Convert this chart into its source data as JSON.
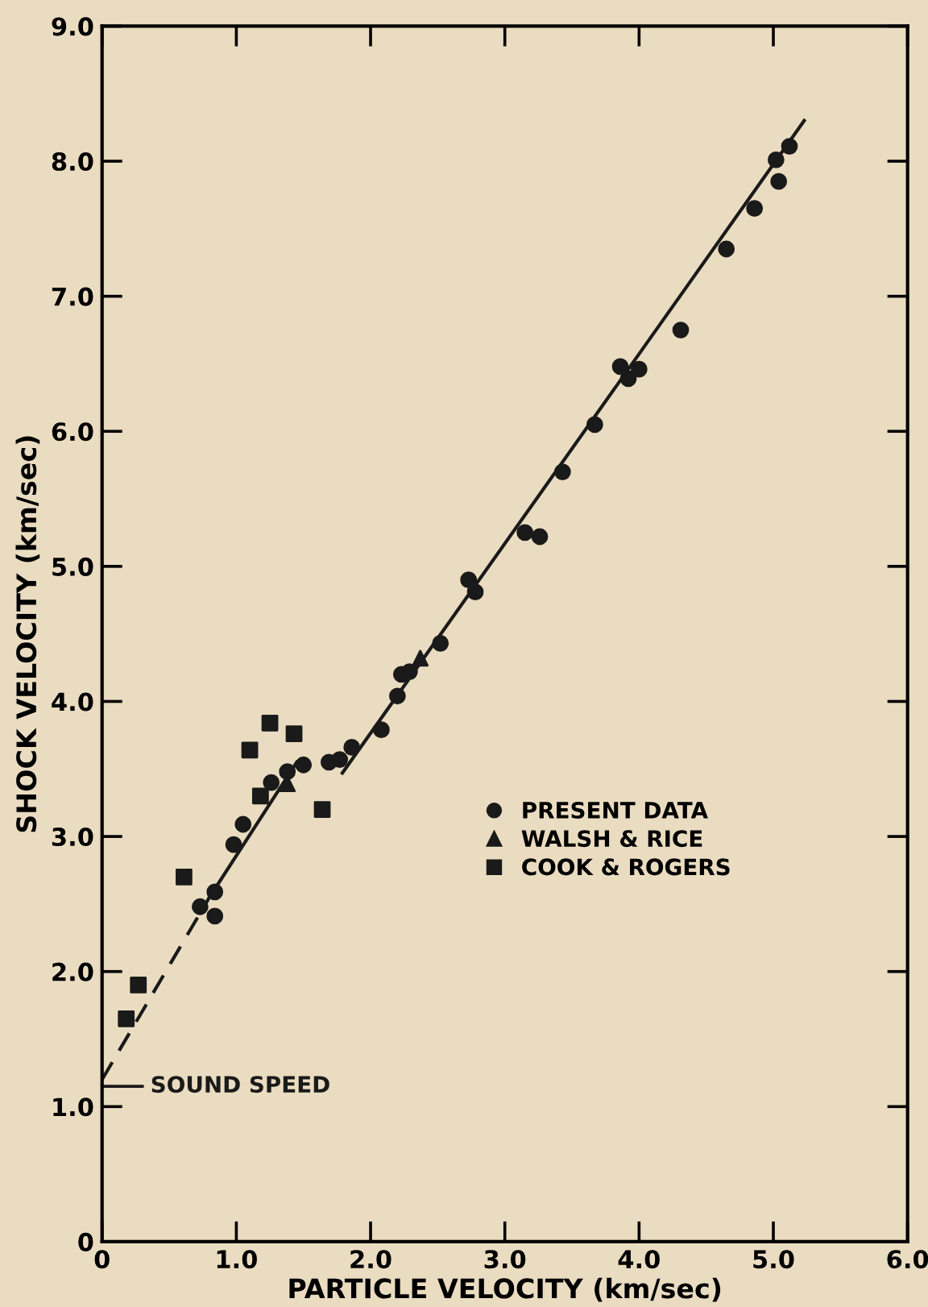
{
  "chart_data": {
    "type": "scatter",
    "xlabel": "PARTICLE VELOCITY (km/sec)",
    "ylabel": "SHOCK VELOCITY (km/sec)",
    "xlim": [
      0,
      6
    ],
    "ylim": [
      0,
      9
    ],
    "xticks": [
      0,
      {
        "value": 1,
        "label": "1.0"
      },
      {
        "value": 2,
        "label": "2.0"
      },
      {
        "value": 3,
        "label": "3.0"
      },
      {
        "value": 4,
        "label": "4.0"
      },
      {
        "value": 5,
        "label": "5.0"
      },
      {
        "value": 6,
        "label": "6.0"
      }
    ],
    "yticks": [
      0,
      {
        "value": 1,
        "label": "1.0"
      },
      {
        "value": 2,
        "label": "2.0"
      },
      {
        "value": 3,
        "label": "3.0"
      },
      {
        "value": 4,
        "label": "4.0"
      },
      {
        "value": 5,
        "label": "5.0"
      },
      {
        "value": 6,
        "label": "6.0"
      },
      {
        "value": 7,
        "label": "7.0"
      },
      {
        "value": 8,
        "label": "8.0"
      },
      {
        "value": 9,
        "label": "9.0"
      }
    ],
    "grid": false,
    "legend": "center",
    "ref_lines": [
      {
        "axis": "y",
        "value": 1.15,
        "label": "SOUND SPEED",
        "color": "#1a1a1a"
      }
    ],
    "series": [
      {
        "name": "PRESENT DATA",
        "color": "#1a1a1a",
        "marker": "circle",
        "x": [
          5.12,
          5.02,
          5.04,
          4.86,
          4.65,
          4.31,
          3.86,
          3.92,
          4.0,
          3.67,
          3.43,
          3.15,
          3.26,
          2.73,
          2.78,
          2.52,
          2.23,
          2.29,
          2.2,
          2.08,
          1.86,
          1.77,
          1.69,
          1.5,
          1.38,
          1.26,
          1.05,
          0.98,
          0.73,
          0.84,
          0.84
        ],
        "values": [
          8.11,
          8.01,
          7.85,
          7.65,
          7.35,
          6.75,
          6.48,
          6.39,
          6.46,
          6.05,
          5.7,
          5.25,
          5.22,
          4.9,
          4.81,
          4.43,
          4.2,
          4.22,
          4.04,
          3.79,
          3.66,
          3.57,
          3.55,
          3.53,
          3.48,
          3.4,
          3.09,
          2.94,
          2.48,
          2.59,
          2.41
        ]
      },
      {
        "name": "WALSH & RICE",
        "color": "#1a1a1a",
        "marker": "triangle",
        "x": [
          1.38,
          2.37
        ],
        "values": [
          3.39,
          4.32
        ]
      },
      {
        "name": "COOK & ROGERS",
        "color": "#1a1a1a",
        "marker": "square",
        "x": [
          1.25,
          1.1,
          1.43,
          1.18,
          1.64,
          0.61,
          0.27,
          0.18
        ],
        "values": [
          3.84,
          3.64,
          3.76,
          3.3,
          3.2,
          2.7,
          1.9,
          1.65
        ]
      },
      {
        "type": "line",
        "color": "#1a1a1a",
        "line_style": "dashed",
        "x": [
          0,
          0.8
        ],
        "values": [
          1.2,
          2.55
        ]
      },
      {
        "type": "line",
        "color": "#1a1a1a",
        "line_style": "solid",
        "x": [
          0.8,
          1.45
        ],
        "values": [
          2.55,
          3.55
        ]
      },
      {
        "type": "line",
        "color": "#1a1a1a",
        "line_style": "solid",
        "x": [
          1.79,
          5.23
        ],
        "values": [
          3.47,
          8.3
        ]
      }
    ]
  }
}
